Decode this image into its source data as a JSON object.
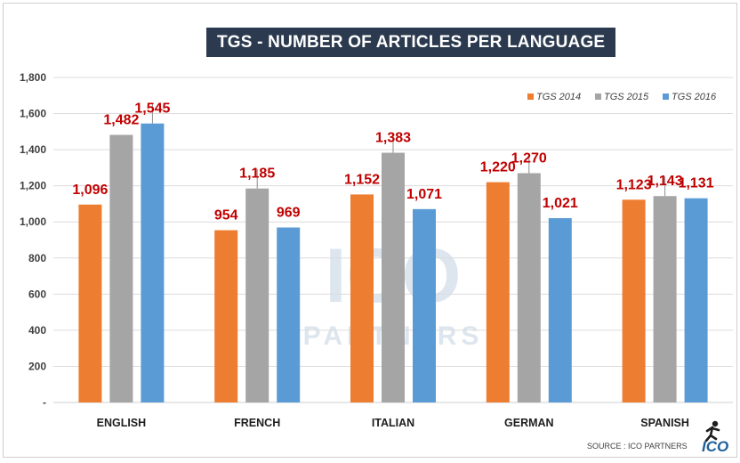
{
  "chart_data": {
    "type": "bar",
    "title": "TGS - NUMBER OF ARTICLES PER LANGUAGE",
    "categories": [
      "ENGLISH",
      "FRENCH",
      "ITALIAN",
      "GERMAN",
      "SPANISH"
    ],
    "series": [
      {
        "name": "TGS 2014",
        "color": "#ed7d31",
        "values": [
          1096,
          954,
          1152,
          1220,
          1123
        ],
        "labels": [
          "1,096",
          "954",
          "1,152",
          "1,220",
          "1,123"
        ]
      },
      {
        "name": "TGS 2015",
        "color": "#a5a5a5",
        "values": [
          1482,
          1185,
          1383,
          1270,
          1143
        ],
        "labels": [
          "1,482",
          "1,185",
          "1,383",
          "1,270",
          "1,143"
        ]
      },
      {
        "name": "TGS 2016",
        "color": "#5b9bd5",
        "values": [
          1545,
          969,
          1071,
          1021,
          1131
        ],
        "labels": [
          "1,545",
          "969",
          "1,071",
          "1,021",
          "1,131"
        ]
      }
    ],
    "ylim": [
      0,
      1800
    ],
    "yticks": [
      {
        "value": 0,
        "label": "-"
      },
      {
        "value": 200,
        "label": "200"
      },
      {
        "value": 400,
        "label": "400"
      },
      {
        "value": 600,
        "label": "600"
      },
      {
        "value": 800,
        "label": "800"
      },
      {
        "value": 1000,
        "label": "1,000"
      },
      {
        "value": 1200,
        "label": "1,200"
      },
      {
        "value": 1400,
        "label": "1,400"
      },
      {
        "value": 1600,
        "label": "1,600"
      },
      {
        "value": 1800,
        "label": "1,800"
      }
    ],
    "grid": true,
    "legend": "top-right",
    "xlabel": "",
    "ylabel": ""
  },
  "watermark": {
    "top_text": "ICO",
    "bottom_text": "PARTNERS"
  },
  "footer": {
    "source": "SOURCE : ICO PARTNERS",
    "logo_text": "ICO"
  }
}
